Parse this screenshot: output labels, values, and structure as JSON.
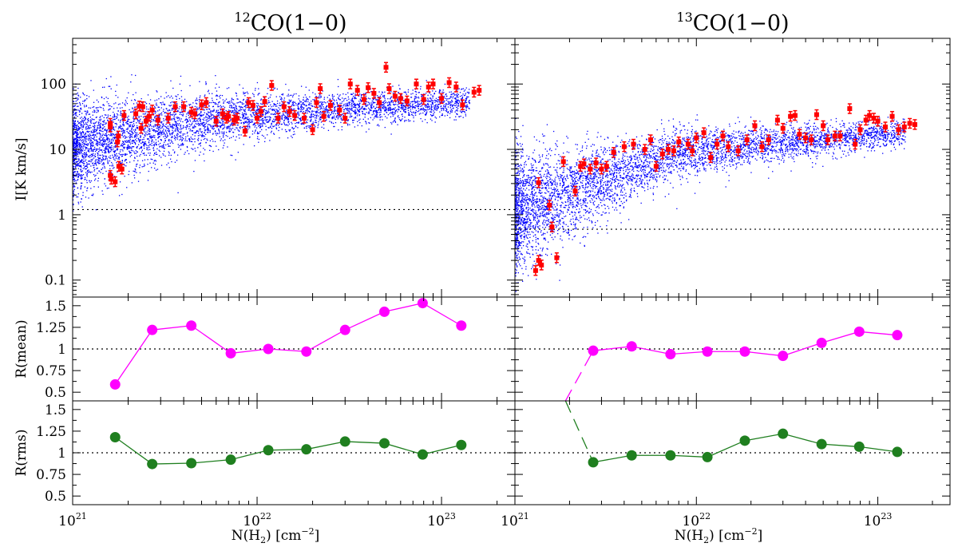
{
  "panels": {
    "left_title": {
      "iso": "12",
      "label": "CO(1−0)"
    },
    "right_title": {
      "iso": "13",
      "label": "CO(1−0)"
    }
  },
  "axes": {
    "ylabel_top": "I[K km/s]",
    "ylabel_mid": "R(mean)",
    "ylabel_bot": "R(rms)",
    "xlabel_pre": "N(H",
    "xlabel_sub": "2",
    "xlabel_post": ") [cm",
    "xlabel_sup": "−2",
    "xlabel_end": "]"
  },
  "chart_data": [
    {
      "id": "intensity-12co",
      "type": "scatter",
      "xscale": "log",
      "yscale": "log",
      "xlim": [
        1e+21,
        2.5e+23
      ],
      "ylim": [
        0.055,
        500
      ],
      "xlabel": "N(H2) [cm-2]",
      "ylabel": "I[K km/s]",
      "threshold_y": 1.2,
      "cloud_color": "#0000ff",
      "marker_color": "#ff0000",
      "points": [
        [
          1.6e+21,
          25
        ],
        [
          1.6e+21,
          22
        ],
        [
          1.6e+21,
          4
        ],
        [
          1.62e+21,
          3.5
        ],
        [
          1.7e+21,
          3.2
        ],
        [
          1.75e+21,
          13
        ],
        [
          1.77e+21,
          16
        ],
        [
          1.78e+21,
          5.5
        ],
        [
          1.85e+21,
          5
        ],
        [
          1.9e+21,
          33
        ],
        [
          2.2e+21,
          35
        ],
        [
          2.3e+21,
          46
        ],
        [
          2.35e+21,
          21
        ],
        [
          2.4e+21,
          45
        ],
        [
          2.5e+21,
          27
        ],
        [
          2.6e+21,
          32
        ],
        [
          2.7e+21,
          40
        ],
        [
          2.9e+21,
          28
        ],
        [
          3.3e+21,
          30
        ],
        [
          3.6e+21,
          45
        ],
        [
          4e+21,
          45
        ],
        [
          4.4e+21,
          37
        ],
        [
          4.6e+21,
          35
        ],
        [
          5e+21,
          48
        ],
        [
          5.3e+21,
          52
        ],
        [
          6e+21,
          27
        ],
        [
          6.5e+21,
          35
        ],
        [
          6.8e+21,
          30
        ],
        [
          7e+21,
          32
        ],
        [
          7.5e+21,
          28
        ],
        [
          7.8e+21,
          30
        ],
        [
          8.6e+21,
          19
        ],
        [
          9e+21,
          52
        ],
        [
          9.5e+21,
          47
        ],
        [
          1e+22,
          30
        ],
        [
          1.05e+22,
          38
        ],
        [
          1.1e+22,
          54
        ],
        [
          1.2e+22,
          95
        ],
        [
          1.3e+22,
          30
        ],
        [
          1.4e+22,
          45
        ],
        [
          1.5e+22,
          38
        ],
        [
          1.6e+22,
          33
        ],
        [
          1.8e+22,
          30
        ],
        [
          2e+22,
          20
        ],
        [
          2.1e+22,
          52
        ],
        [
          2.2e+22,
          85
        ],
        [
          2.3e+22,
          32
        ],
        [
          2.5e+22,
          47
        ],
        [
          2.8e+22,
          40
        ],
        [
          3e+22,
          30
        ],
        [
          3.2e+22,
          100
        ],
        [
          3.5e+22,
          80
        ],
        [
          3.8e+22,
          58
        ],
        [
          4e+22,
          88
        ],
        [
          4.3e+22,
          72
        ],
        [
          4.6e+22,
          52
        ],
        [
          5e+22,
          180
        ],
        [
          5.2e+22,
          85
        ],
        [
          5.6e+22,
          65
        ],
        [
          6e+22,
          60
        ],
        [
          6.5e+22,
          55
        ],
        [
          7.3e+22,
          100
        ],
        [
          8e+22,
          58
        ],
        [
          8.5e+22,
          90
        ],
        [
          9e+22,
          100
        ],
        [
          1e+23,
          60
        ],
        [
          1.1e+23,
          105
        ],
        [
          1.2e+23,
          90
        ],
        [
          1.3e+23,
          48
        ],
        [
          1.5e+23,
          75
        ],
        [
          1.6e+23,
          80
        ]
      ]
    },
    {
      "id": "intensity-13co",
      "type": "scatter",
      "xscale": "log",
      "yscale": "log",
      "xlim": [
        1e+21,
        2.5e+23
      ],
      "ylim": [
        0.055,
        500
      ],
      "xlabel": "N(H2) [cm-2]",
      "ylabel": "",
      "threshold_y": 0.6,
      "cloud_color": "#0000ff",
      "marker_color": "#ff0000",
      "points": [
        [
          1.3e+21,
          0.14
        ],
        [
          1.35e+21,
          0.2
        ],
        [
          1.4e+21,
          0.17
        ],
        [
          1.35e+21,
          3.1
        ],
        [
          1.55e+21,
          1.4
        ],
        [
          1.6e+21,
          0.65
        ],
        [
          1.7e+21,
          0.22
        ],
        [
          1.85e+21,
          6.5
        ],
        [
          2.15e+21,
          2.3
        ],
        [
          2.3e+21,
          5.5
        ],
        [
          2.4e+21,
          6.0
        ],
        [
          2.6e+21,
          5.0
        ],
        [
          2.8e+21,
          6.2
        ],
        [
          3e+21,
          5.0
        ],
        [
          3.2e+21,
          5.5
        ],
        [
          3.5e+21,
          9.0
        ],
        [
          4e+21,
          11
        ],
        [
          4.5e+21,
          12
        ],
        [
          5.2e+21,
          10
        ],
        [
          5.6e+21,
          14
        ],
        [
          6e+21,
          5.5
        ],
        [
          6.5e+21,
          8.5
        ],
        [
          7e+21,
          10
        ],
        [
          7.5e+21,
          9.5
        ],
        [
          8e+21,
          13
        ],
        [
          9e+21,
          12
        ],
        [
          9.5e+21,
          9.5
        ],
        [
          1e+22,
          15
        ],
        [
          1.1e+22,
          18
        ],
        [
          1.2e+22,
          7.5
        ],
        [
          1.3e+22,
          12
        ],
        [
          1.4e+22,
          16
        ],
        [
          1.5e+22,
          11
        ],
        [
          1.7e+22,
          9.5
        ],
        [
          1.9e+22,
          14
        ],
        [
          2.1e+22,
          23
        ],
        [
          2.3e+22,
          11
        ],
        [
          2.5e+22,
          14
        ],
        [
          2.8e+22,
          28
        ],
        [
          3e+22,
          21
        ],
        [
          3.3e+22,
          32
        ],
        [
          3.5e+22,
          33
        ],
        [
          3.7e+22,
          17
        ],
        [
          4e+22,
          15
        ],
        [
          4.3e+22,
          14
        ],
        [
          4.6e+22,
          34
        ],
        [
          5e+22,
          23
        ],
        [
          5.3e+22,
          14
        ],
        [
          5.8e+22,
          16
        ],
        [
          6.2e+22,
          16
        ],
        [
          7e+22,
          42
        ],
        [
          7.5e+22,
          12
        ],
        [
          8e+22,
          20
        ],
        [
          8.6e+22,
          28
        ],
        [
          9e+22,
          33
        ],
        [
          9.5e+22,
          30
        ],
        [
          1e+23,
          27
        ],
        [
          1.1e+23,
          22
        ],
        [
          1.2e+23,
          32
        ],
        [
          1.3e+23,
          20
        ],
        [
          1.4e+23,
          22
        ],
        [
          1.5e+23,
          25
        ],
        [
          1.6e+23,
          24
        ]
      ]
    },
    {
      "id": "rmean-12co",
      "type": "line",
      "xscale": "log",
      "xlim": [
        1e+21,
        2.5e+23
      ],
      "ylim": [
        0.4,
        1.6
      ],
      "yticks": [
        "0.5",
        "0.75",
        "1",
        "1.25",
        "1.5"
      ],
      "ylabel": "R(mean)",
      "reference_y": 1,
      "color": "#ff00ff",
      "x": [
        1.7e+21,
        2.7e+21,
        4.4e+21,
        7.2e+21,
        1.15e+22,
        1.85e+22,
        3e+22,
        4.9e+22,
        7.9e+22,
        1.28e+23
      ],
      "y": [
        0.59,
        1.22,
        1.27,
        0.95,
        1.0,
        0.97,
        1.22,
        1.43,
        1.53,
        1.27
      ],
      "dashed_segments": []
    },
    {
      "id": "rmean-13co",
      "type": "line",
      "xscale": "log",
      "xlim": [
        1e+21,
        2.5e+23
      ],
      "ylim": [
        0.4,
        1.6
      ],
      "yticks": [
        "0.5",
        "0.75",
        "1",
        "1.25",
        "1.5"
      ],
      "ylabel": "",
      "reference_y": 1,
      "color": "#ff00ff",
      "x": [
        2.7e+21,
        4.4e+21,
        7.2e+21,
        1.15e+22,
        1.85e+22,
        3e+22,
        4.9e+22,
        7.9e+22,
        1.28e+23
      ],
      "y": [
        0.98,
        1.03,
        0.94,
        0.97,
        0.97,
        0.92,
        1.07,
        1.2,
        1.16
      ],
      "dashed_segments": [
        [
          [
            1.9e+21,
            0.4
          ],
          [
            2.7e+21,
            0.98
          ]
        ]
      ]
    },
    {
      "id": "rrms-12co",
      "type": "line",
      "xscale": "log",
      "xlim": [
        1e+21,
        2.5e+23
      ],
      "ylim": [
        0.4,
        1.6
      ],
      "yticks": [
        "0.5",
        "0.75",
        "1",
        "1.25",
        "1.5"
      ],
      "ylabel": "R(rms)",
      "reference_y": 1,
      "color": "#1f7f1f",
      "x": [
        1.7e+21,
        2.7e+21,
        4.4e+21,
        7.2e+21,
        1.15e+22,
        1.85e+22,
        3e+22,
        4.9e+22,
        7.9e+22,
        1.28e+23
      ],
      "y": [
        1.18,
        0.87,
        0.88,
        0.92,
        1.03,
        1.04,
        1.13,
        1.11,
        0.98,
        1.09
      ],
      "dashed_segments": []
    },
    {
      "id": "rrms-13co",
      "type": "line",
      "xscale": "log",
      "xlim": [
        1e+21,
        2.5e+23
      ],
      "ylim": [
        0.4,
        1.6
      ],
      "yticks": [
        "0.5",
        "0.75",
        "1",
        "1.25",
        "1.5"
      ],
      "ylabel": "",
      "reference_y": 1,
      "color": "#1f7f1f",
      "x": [
        2.7e+21,
        4.4e+21,
        7.2e+21,
        1.15e+22,
        1.85e+22,
        3e+22,
        4.9e+22,
        7.9e+22,
        1.28e+23
      ],
      "y": [
        0.89,
        0.97,
        0.97,
        0.95,
        1.14,
        1.22,
        1.1,
        1.07,
        1.01
      ],
      "dashed_segments": [
        [
          [
            1.9e+21,
            1.6
          ],
          [
            2.7e+21,
            0.89
          ]
        ]
      ]
    }
  ]
}
